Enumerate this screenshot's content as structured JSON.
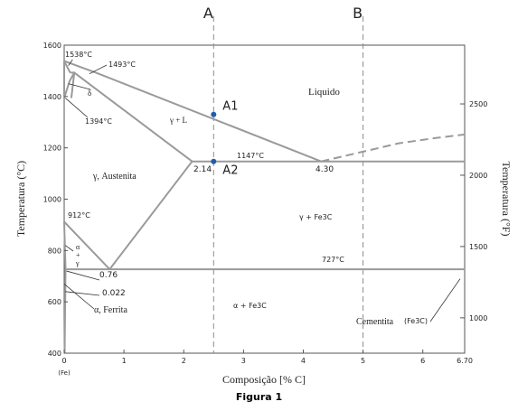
{
  "caption": "Figura 1",
  "chart_data": {
    "type": "phase-diagram",
    "xlabel": "Composição [% C]",
    "ylabel_left": "Temperatura (°C)",
    "ylabel_right": "Temperatura (°F)",
    "xlim": [
      0,
      6.7
    ],
    "ylim": [
      400,
      1600
    ],
    "x_ticks": [
      {
        "v": 0,
        "label": "0"
      },
      {
        "v": 1,
        "label": "1"
      },
      {
        "v": 2,
        "label": "2"
      },
      {
        "v": 3,
        "label": "3"
      },
      {
        "v": 4,
        "label": "4"
      },
      {
        "v": 5,
        "label": "5"
      },
      {
        "v": 6,
        "label": "6"
      },
      {
        "v": 6.7,
        "label": "6.70"
      }
    ],
    "x_sublabel": {
      "v": 0,
      "label": "(Fe)"
    },
    "y_ticks": [
      {
        "v": 400,
        "label": "400"
      },
      {
        "v": 600,
        "label": "600"
      },
      {
        "v": 800,
        "label": "800"
      },
      {
        "v": 1000,
        "label": "1000"
      },
      {
        "v": 1200,
        "label": "1200"
      },
      {
        "v": 1400,
        "label": "1400"
      },
      {
        "v": 1600,
        "label": "1600"
      }
    ],
    "y_ticks_right": [
      {
        "v": 1000,
        "label": "1000"
      },
      {
        "v": 1500,
        "label": "1500"
      },
      {
        "v": 2000,
        "label": "2000"
      },
      {
        "v": 2500,
        "label": "2500"
      }
    ],
    "reference_lines": [
      {
        "x": 2.5,
        "label": "A"
      },
      {
        "x": 5.0,
        "label": "B"
      }
    ],
    "points": [
      {
        "x": 2.5,
        "y": 1330,
        "label": "A1"
      },
      {
        "x": 2.5,
        "y": 1147,
        "label": "A2"
      }
    ],
    "phase_boundaries": [
      {
        "name": "liquidus-left",
        "points": [
          [
            0.53,
            1493
          ],
          [
            4.3,
            1147
          ]
        ]
      },
      {
        "name": "solidus-gamma",
        "points": [
          [
            0.17,
            1493
          ],
          [
            2.14,
            1147
          ]
        ]
      },
      {
        "name": "eutectic",
        "points": [
          [
            2.14,
            1147
          ],
          [
            6.7,
            1147
          ]
        ]
      },
      {
        "name": "eutectoid",
        "points": [
          [
            0.022,
            727
          ],
          [
            6.7,
            727
          ]
        ]
      },
      {
        "name": "a3-line",
        "points": [
          [
            0,
            912
          ],
          [
            0.76,
            727
          ]
        ]
      },
      {
        "name": "acm-line",
        "points": [
          [
            0.76,
            727
          ],
          [
            2.14,
            1147
          ]
        ]
      },
      {
        "name": "alpha-solvus",
        "points": [
          [
            0,
            912
          ],
          [
            0.022,
            727
          ]
        ]
      },
      {
        "name": "alpha-low",
        "points": [
          [
            0.022,
            727
          ],
          [
            0.008,
            400
          ]
        ]
      },
      {
        "name": "delta-top",
        "points": [
          [
            0,
            1538
          ],
          [
            0.1,
            1493
          ]
        ]
      },
      {
        "name": "delta-right",
        "points": [
          [
            0.1,
            1493
          ],
          [
            0.17,
            1493
          ],
          [
            0.12,
            1394
          ]
        ]
      },
      {
        "name": "delta-left",
        "points": [
          [
            0,
            1538
          ],
          [
            0.0,
            1394
          ]
        ]
      },
      {
        "name": "gamma-left",
        "points": [
          [
            0,
            1394
          ],
          [
            0.09,
            1460
          ],
          [
            0.17,
            1493
          ]
        ]
      },
      {
        "name": "liquidus-delta",
        "points": [
          [
            0,
            1538
          ],
          [
            0.53,
            1493
          ]
        ]
      },
      {
        "name": "liquidus-fe3c",
        "dashed": true,
        "points": [
          [
            4.3,
            1147
          ],
          [
            5.0,
            1185
          ],
          [
            5.6,
            1218
          ],
          [
            6.2,
            1238
          ],
          [
            6.7,
            1252
          ]
        ]
      }
    ],
    "labels": {
      "liquido": "Liquido",
      "gamma_l": "γ + L",
      "austenita": "γ,  Austenita",
      "gamma_fe3c": "γ + Fe3C",
      "alpha_fe3c": "α + Fe3C",
      "cementita": "Cementita",
      "cementita_sub": "(Fe3C)",
      "ferrita": "α,  Ferrita",
      "delta": "δ",
      "alpha_gamma": "α\n+\nγ",
      "t1538": "1538°C",
      "t1493": "1493°C",
      "t1394": "1394°C",
      "t1147": "1147°C",
      "t912": "912°C",
      "t727": "727°C",
      "c214": "2.14",
      "c430": "4.30",
      "c076": "0.76",
      "c0022": "0.022"
    },
    "colors": {
      "line": "#9a9a9a",
      "ref": "#8c8c8c",
      "point": "#1f5fa8",
      "text": "#222222"
    }
  }
}
